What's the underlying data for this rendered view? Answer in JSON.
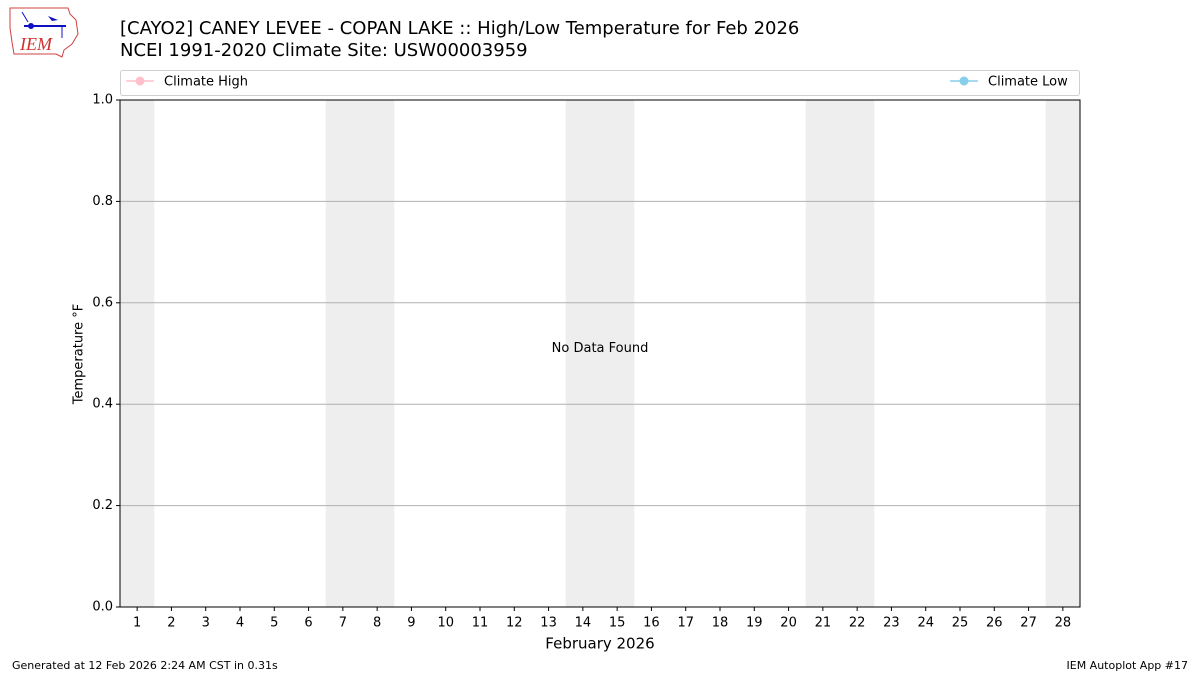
{
  "chart_data": {
    "type": "line",
    "title": "[CAYO2] CANEY LEVEE - COPAN LAKE :: High/Low Temperature for Feb 2026",
    "subtitle": "NCEI 1991-2020 Climate Site: USW00003959",
    "xlabel": "February 2026",
    "ylabel": "Temperature °F",
    "annotation": "No Data Found",
    "x": [
      1,
      2,
      3,
      4,
      5,
      6,
      7,
      8,
      9,
      10,
      11,
      12,
      13,
      14,
      15,
      16,
      17,
      18,
      19,
      20,
      21,
      22,
      23,
      24,
      25,
      26,
      27,
      28
    ],
    "series": [
      {
        "name": "Climate High",
        "color": "#ffc0cb",
        "values": [
          null,
          null,
          null,
          null,
          null,
          null,
          null,
          null,
          null,
          null,
          null,
          null,
          null,
          null,
          null,
          null,
          null,
          null,
          null,
          null,
          null,
          null,
          null,
          null,
          null,
          null,
          null,
          null
        ]
      },
      {
        "name": "Climate Low",
        "color": "#87ceeb",
        "values": [
          null,
          null,
          null,
          null,
          null,
          null,
          null,
          null,
          null,
          null,
          null,
          null,
          null,
          null,
          null,
          null,
          null,
          null,
          null,
          null,
          null,
          null,
          null,
          null,
          null,
          null,
          null,
          null
        ]
      }
    ],
    "xlim": [
      0.5,
      28.5
    ],
    "xticks": [
      1,
      2,
      3,
      4,
      5,
      6,
      7,
      8,
      9,
      10,
      11,
      12,
      13,
      14,
      15,
      16,
      17,
      18,
      19,
      20,
      21,
      22,
      23,
      24,
      25,
      26,
      27,
      28
    ],
    "ylim": [
      0,
      1
    ],
    "yticks": [
      {
        "value": 0,
        "label": "0.0"
      },
      0.2,
      0.4,
      0.6,
      0.8,
      {
        "value": 1,
        "label": "1.0"
      }
    ],
    "grid": true,
    "logo_text": "IEM",
    "footer_left": "Generated at 12 Feb 2026 2:24 AM CST in 0.31s",
    "footer_right": "IEM Autoplot App #17"
  }
}
